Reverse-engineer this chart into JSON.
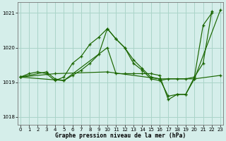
{
  "bg_color": "#d5eeea",
  "line_color": "#1a6600",
  "grid_color": "#aad4c8",
  "title": "Graphe pression niveau de la mer (hPa)",
  "xlim": [
    -0.3,
    23.3
  ],
  "ylim": [
    1017.78,
    1021.32
  ],
  "yticks": [
    1018,
    1019,
    1020,
    1021
  ],
  "xticks": [
    0,
    1,
    2,
    3,
    4,
    5,
    6,
    7,
    8,
    9,
    10,
    11,
    12,
    13,
    14,
    15,
    16,
    17,
    18,
    19,
    20,
    21,
    22,
    23
  ],
  "series": [
    {
      "x": [
        0,
        1,
        2,
        3,
        4,
        5,
        6,
        7,
        8,
        9,
        10,
        11,
        12,
        13,
        14,
        15,
        16,
        17,
        18,
        19,
        20,
        21,
        22
      ],
      "y": [
        1019.15,
        1019.25,
        1019.3,
        1019.25,
        1019.05,
        1019.15,
        1019.55,
        1019.75,
        1020.1,
        1020.3,
        1020.55,
        1020.25,
        1020.0,
        1019.65,
        1019.4,
        1019.15,
        1019.1,
        1018.6,
        1018.65,
        1018.65,
        1019.15,
        1019.55,
        1021.05
      ]
    },
    {
      "x": [
        0,
        3,
        4,
        5,
        6,
        7,
        8,
        9,
        10,
        11,
        12,
        13,
        14,
        15,
        16,
        17,
        18,
        19,
        20,
        21,
        22
      ],
      "y": [
        1019.15,
        1019.3,
        1019.1,
        1019.05,
        1019.2,
        1019.35,
        1019.55,
        1019.8,
        1020.55,
        1020.25,
        1020.0,
        1019.55,
        1019.35,
        1019.1,
        1019.05,
        1019.1,
        1019.1,
        1019.1,
        1019.15,
        1020.65,
        1021.0
      ]
    },
    {
      "x": [
        0,
        5,
        10,
        11,
        12,
        13,
        14,
        15,
        16,
        17,
        18,
        19,
        20,
        23
      ],
      "y": [
        1019.15,
        1019.05,
        1020.0,
        1019.25,
        1019.25,
        1019.25,
        1019.25,
        1019.25,
        1019.2,
        1018.5,
        1018.65,
        1018.65,
        1019.1,
        1021.1
      ]
    },
    {
      "x": [
        0,
        4,
        10,
        16,
        20,
        23
      ],
      "y": [
        1019.15,
        1019.25,
        1019.3,
        1019.1,
        1019.1,
        1019.2
      ]
    }
  ]
}
